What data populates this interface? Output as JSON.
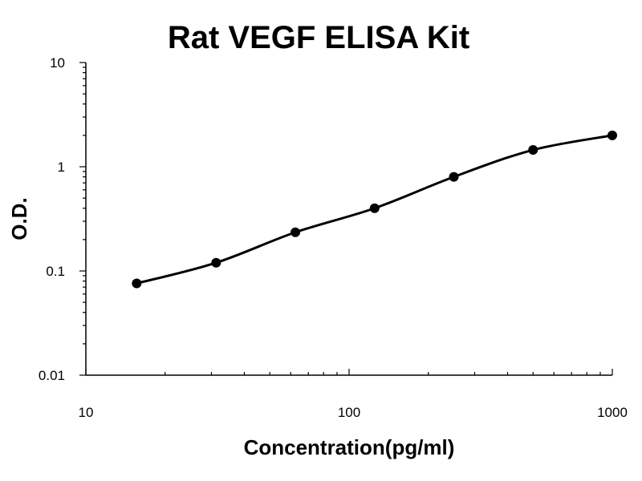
{
  "chart_data": {
    "type": "scatter",
    "title": "Rat VEGF ELISA Kit",
    "xlabel": "Concentration(pg/ml)",
    "ylabel": "O.D.",
    "xscale": "log",
    "yscale": "log",
    "xlim": [
      10,
      1000
    ],
    "ylim": [
      0.01,
      10
    ],
    "x_ticks": [
      "10",
      "100",
      "1000"
    ],
    "y_ticks": [
      "0.01",
      "0.1",
      "1",
      "10"
    ],
    "grid": false,
    "legend": "none",
    "series": [
      {
        "points": [
          {
            "x": 15.6,
            "y": 0.076
          },
          {
            "x": 31.25,
            "y": 0.12
          },
          {
            "x": 62.5,
            "y": 0.235
          },
          {
            "x": 125,
            "y": 0.4
          },
          {
            "x": 250,
            "y": 0.8
          },
          {
            "x": 500,
            "y": 1.45
          },
          {
            "x": 1000,
            "y": 2.0
          }
        ],
        "color": "#000000",
        "fit_curve": true
      }
    ]
  }
}
